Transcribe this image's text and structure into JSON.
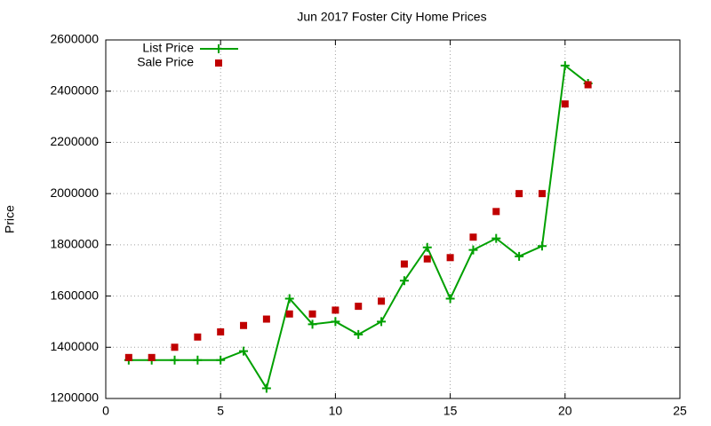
{
  "chart_data": {
    "type": "line",
    "title": "Jun 2017 Foster City Home Prices",
    "y_label": "Price",
    "x": [
      1,
      2,
      3,
      4,
      5,
      6,
      7,
      8,
      9,
      10,
      11,
      12,
      13,
      14,
      15,
      16,
      17,
      18,
      19,
      20,
      21
    ],
    "series": [
      {
        "name": "List Price",
        "color": "#00a000",
        "mode": "lines+markers",
        "marker": "plus",
        "values": [
          1350000,
          1350000,
          1350000,
          1350000,
          1350000,
          1385000,
          1240000,
          1590000,
          1490000,
          1500000,
          1450000,
          1500000,
          1660000,
          1790000,
          1590000,
          1780000,
          1825000,
          1755000,
          1795000,
          2500000,
          2430000
        ]
      },
      {
        "name": "Sale Price",
        "color": "#c00000",
        "mode": "markers",
        "marker": "square",
        "values": [
          1360000,
          1360000,
          1400000,
          1440000,
          1460000,
          1485000,
          1510000,
          1530000,
          1530000,
          1545000,
          1560000,
          1580000,
          1725000,
          1745000,
          1750000,
          1830000,
          1930000,
          2000000,
          2000000,
          2350000,
          2425000
        ]
      }
    ],
    "xlim": [
      0,
      25
    ],
    "xticks": [
      0,
      5,
      10,
      15,
      20,
      25
    ],
    "ylim": [
      1200000,
      2600000
    ],
    "yticks": [
      1200000,
      1400000,
      1600000,
      1800000,
      2000000,
      2200000,
      2400000,
      2600000
    ],
    "grid": true,
    "legend": "top-left"
  }
}
